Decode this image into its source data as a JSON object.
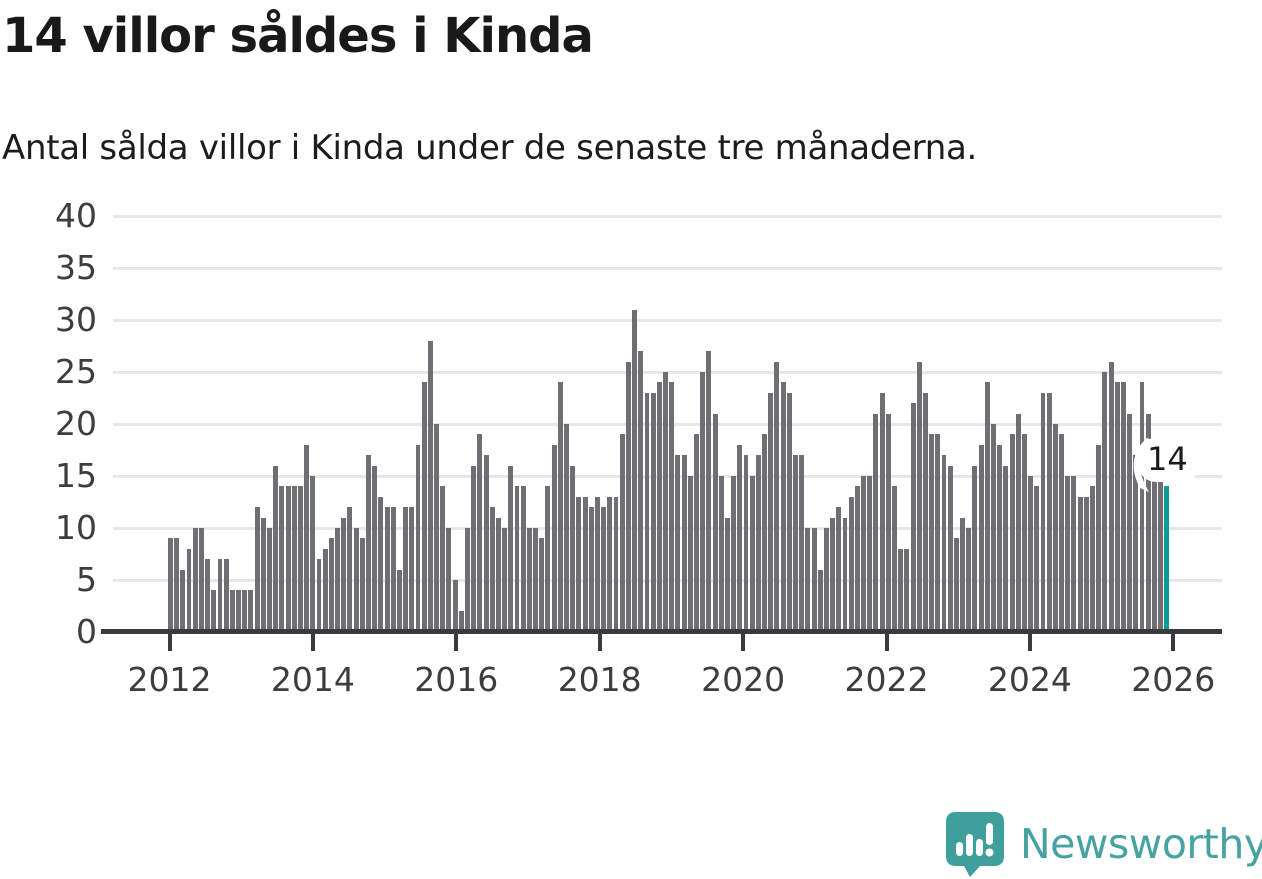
{
  "header": {
    "title": "14 villor såldes i Kinda",
    "subtitle": "Antal sålda villor i Kinda under de senaste tre månaderna."
  },
  "annotation": {
    "label": "14"
  },
  "logo": {
    "name": "Newsworthy"
  },
  "colors": {
    "bar": "#6e6e73",
    "highlight": "#0d9b97",
    "axis": "#3a3a3e",
    "grid": "#e7e7e7",
    "logo_teal": "#3f9f9c",
    "logo_text": "#46a3a0",
    "text": "#191919"
  },
  "chart_data": {
    "type": "bar",
    "title": "14 villor såldes i Kinda",
    "subtitle": "Antal sålda villor i Kinda under de senaste tre månaderna.",
    "unit": "sålda villor (rullande 3 månader)",
    "x_start_year": 2012,
    "x_tick_labels": [
      "2012",
      "2014",
      "2016",
      "2018",
      "2020",
      "2022",
      "2024",
      "2026"
    ],
    "y_tick_labels": [
      "0",
      "5",
      "10",
      "15",
      "20",
      "25",
      "30",
      "35",
      "40"
    ],
    "ylim": [
      0,
      40
    ],
    "grid": true,
    "highlight_last_value": 14,
    "values": [
      9,
      9,
      6,
      8,
      10,
      10,
      7,
      4,
      7,
      7,
      4,
      4,
      4,
      4,
      12,
      11,
      10,
      16,
      14,
      14,
      14,
      14,
      18,
      15,
      7,
      8,
      9,
      10,
      11,
      12,
      10,
      9,
      17,
      16,
      13,
      12,
      12,
      6,
      12,
      12,
      18,
      24,
      28,
      20,
      14,
      10,
      5,
      2,
      10,
      16,
      19,
      17,
      12,
      11,
      10,
      16,
      14,
      14,
      10,
      10,
      9,
      14,
      18,
      24,
      20,
      16,
      13,
      13,
      12,
      13,
      12,
      13,
      13,
      19,
      26,
      31,
      27,
      23,
      23,
      24,
      25,
      24,
      17,
      17,
      15,
      19,
      25,
      27,
      21,
      15,
      11,
      15,
      18,
      17,
      15,
      17,
      19,
      23,
      26,
      24,
      23,
      17,
      17,
      10,
      10,
      6,
      10,
      11,
      12,
      11,
      13,
      14,
      15,
      15,
      21,
      23,
      21,
      14,
      8,
      8,
      22,
      26,
      23,
      19,
      19,
      17,
      16,
      9,
      11,
      10,
      16,
      18,
      24,
      20,
      18,
      16,
      19,
      21,
      19,
      15,
      14,
      23,
      23,
      20,
      19,
      15,
      15,
      13,
      13,
      14,
      18,
      25,
      26,
      24,
      24,
      21,
      17,
      24,
      21,
      17,
      16,
      14
    ]
  }
}
